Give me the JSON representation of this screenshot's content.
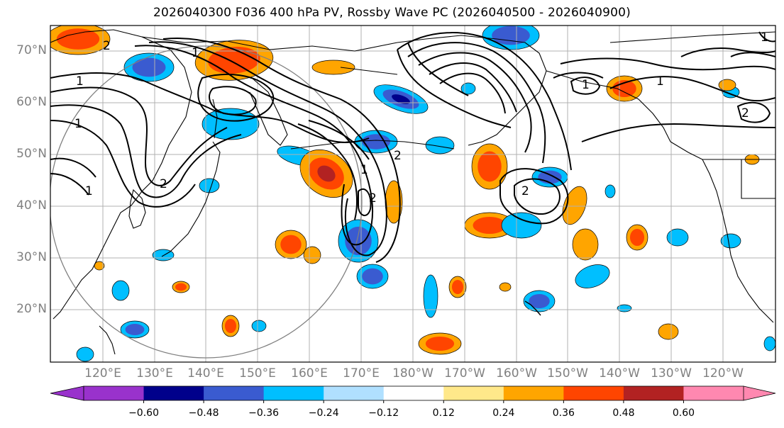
{
  "title": "2026040300 F036 400 hPa PV, Rossby Wave PC (2026040500 - 2026040900)",
  "lat_labels": [
    "70°N",
    "60°N",
    "50°N",
    "40°N",
    "30°N",
    "20°N"
  ],
  "lon_labels": [
    "120°E",
    "130°E",
    "140°E",
    "150°E",
    "160°E",
    "170°E",
    "180°W",
    "170°W",
    "160°W",
    "150°W",
    "140°W",
    "130°W",
    "120°W"
  ],
  "colorbar": {
    "ticks": [
      "−0.60",
      "−0.48",
      "−0.36",
      "−0.24",
      "−0.12",
      "0.12",
      "0.24",
      "0.36",
      "0.48",
      "0.60"
    ],
    "colors": [
      "#9932cc",
      "#00008b",
      "#3a5bd0",
      "#00bfff",
      "#b0e0ff",
      "#ffffff",
      "#ffe88a",
      "#ffa500",
      "#ff4500",
      "#b22222",
      "#ff88b0"
    ]
  },
  "pv_colors": {
    "neg1": "#b0e0ff",
    "neg2": "#00bfff",
    "neg3": "#3a5bd0",
    "neg4": "#00008b",
    "pos1": "#ffe88a",
    "pos2": "#ffa500",
    "pos3": "#ff4500",
    "pos4": "#b22222"
  },
  "contour_labels": [
    "1",
    "1",
    "1",
    "1",
    "2",
    "2",
    "2",
    "2",
    "1",
    "2",
    "1",
    "1",
    "2",
    "1"
  ]
}
